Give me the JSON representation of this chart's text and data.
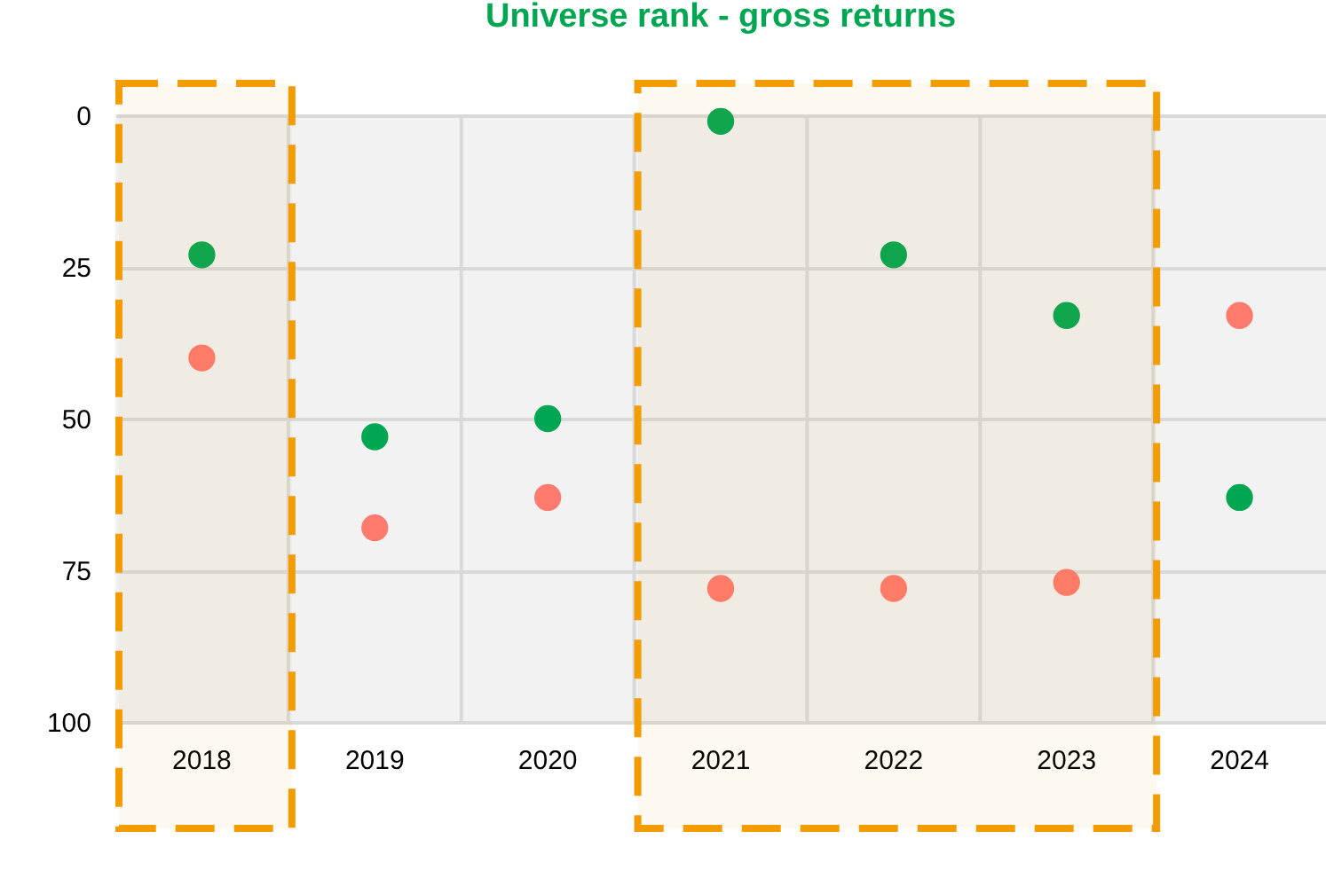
{
  "chart_data": {
    "type": "scatter",
    "title": "Universe rank - gross returns",
    "categories": [
      "2018",
      "2019",
      "2020",
      "2021",
      "2022",
      "2023",
      "2024"
    ],
    "series": [
      {
        "color": "#00a651",
        "values": [
          23,
          53,
          50,
          1,
          23,
          33,
          63
        ]
      },
      {
        "color": "#ff7b6e",
        "values": [
          40,
          68,
          63,
          78,
          78,
          77,
          33
        ]
      }
    ],
    "ylim": [
      100,
      0
    ],
    "yticks": [
      0,
      25,
      50,
      75,
      100
    ],
    "grid": true,
    "marker": "circle",
    "bands": [
      {
        "axis": "x",
        "from": "2018",
        "to": "2018",
        "color": "#f39c00"
      },
      {
        "axis": "x",
        "from": "2021",
        "to": "2023",
        "color": "#f39c00"
      }
    ]
  }
}
